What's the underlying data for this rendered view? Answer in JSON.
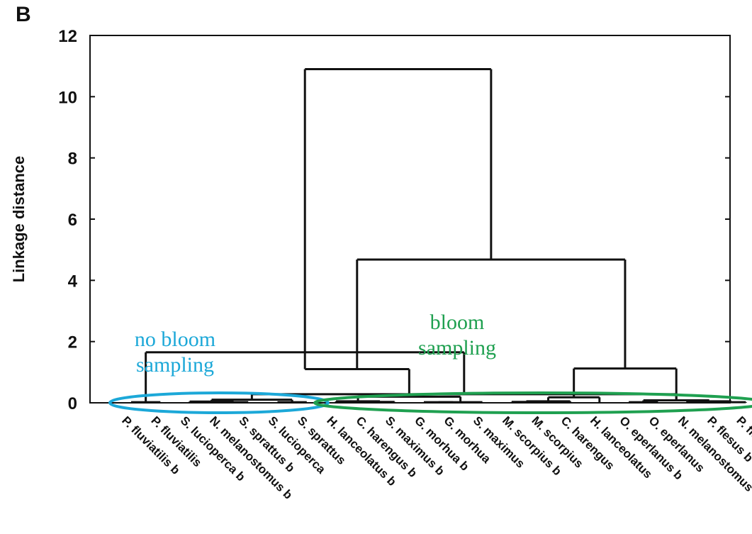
{
  "panel_label": "B",
  "chart_data": {
    "type": "dendrogram",
    "ylabel": "Linkage distance",
    "ylim": [
      0,
      12
    ],
    "yticks": [
      0,
      2,
      4,
      6,
      8,
      10,
      12
    ],
    "leaves": [
      "P. fluviatilis b",
      "P. fluviatilis",
      "S. lucioperca b",
      "N. melanostomus b",
      "S. sprattus b",
      "S. lucioperca",
      "S. sprattus",
      "H. lanceolatus b",
      "C. harengus b",
      "S. maximus b",
      "G. morhua b",
      "G. morhua",
      "S. maximus",
      "M. scorpius b",
      "M. scorpius",
      "C. harengus",
      "H. lanceolatus",
      "O. eperlanus b",
      "O. eperlanus",
      "N. melanostomus",
      "P. flesus b",
      "P. flesus"
    ],
    "merges": [
      {
        "left": "L0",
        "right": "L1",
        "height": 0.02
      },
      {
        "left": "L3",
        "right": "L4",
        "height": 0.02
      },
      {
        "left": "L5",
        "right": "L6",
        "height": 0.02
      },
      {
        "left": "L2",
        "right": "M1",
        "height": 0.04
      },
      {
        "left": "L8",
        "right": "L9",
        "height": 0.03
      },
      {
        "left": "L10",
        "right": "L11",
        "height": 0.02
      },
      {
        "left": "L13",
        "right": "L14",
        "height": 0.03
      },
      {
        "left": "L17",
        "right": "L18",
        "height": 0.02
      },
      {
        "left": "L20",
        "right": "L21",
        "height": 0.02
      },
      {
        "left": "L7",
        "right": "M4",
        "height": 0.05
      },
      {
        "left": "L12",
        "right": "M5",
        "height": 0.02
      },
      {
        "left": "M9",
        "right": "M10",
        "height": 0.2
      },
      {
        "left": "M6",
        "right": "L15",
        "height": 0.05
      },
      {
        "left": "M12",
        "right": "L16",
        "height": 0.18
      },
      {
        "left": "L19",
        "right": "M8",
        "height": 0.05
      },
      {
        "left": "M7",
        "right": "M14",
        "height": 0.08
      },
      {
        "left": "M3",
        "right": "M2",
        "height": 0.1
      },
      {
        "left": "M16",
        "right": "M2b",
        "height": 0.28
      },
      {
        "left": "M0",
        "right": "M17",
        "height": 1.65
      },
      {
        "left": "M11",
        "right": "M21",
        "height": 1.1
      },
      {
        "left": "M13",
        "right": "M15",
        "height": 1.12
      },
      {
        "left": "M19",
        "right": "M20",
        "height": 4.68
      },
      {
        "left": "M18",
        "right": "M21b",
        "height": 10.9
      }
    ],
    "annotations": [
      {
        "text_lines": [
          "no bloom",
          "sampling"
        ],
        "color": "#1ca8d8"
      },
      {
        "text_lines": [
          "bloom",
          "sampling"
        ],
        "color": "#1fa050"
      }
    ],
    "grid": false
  }
}
